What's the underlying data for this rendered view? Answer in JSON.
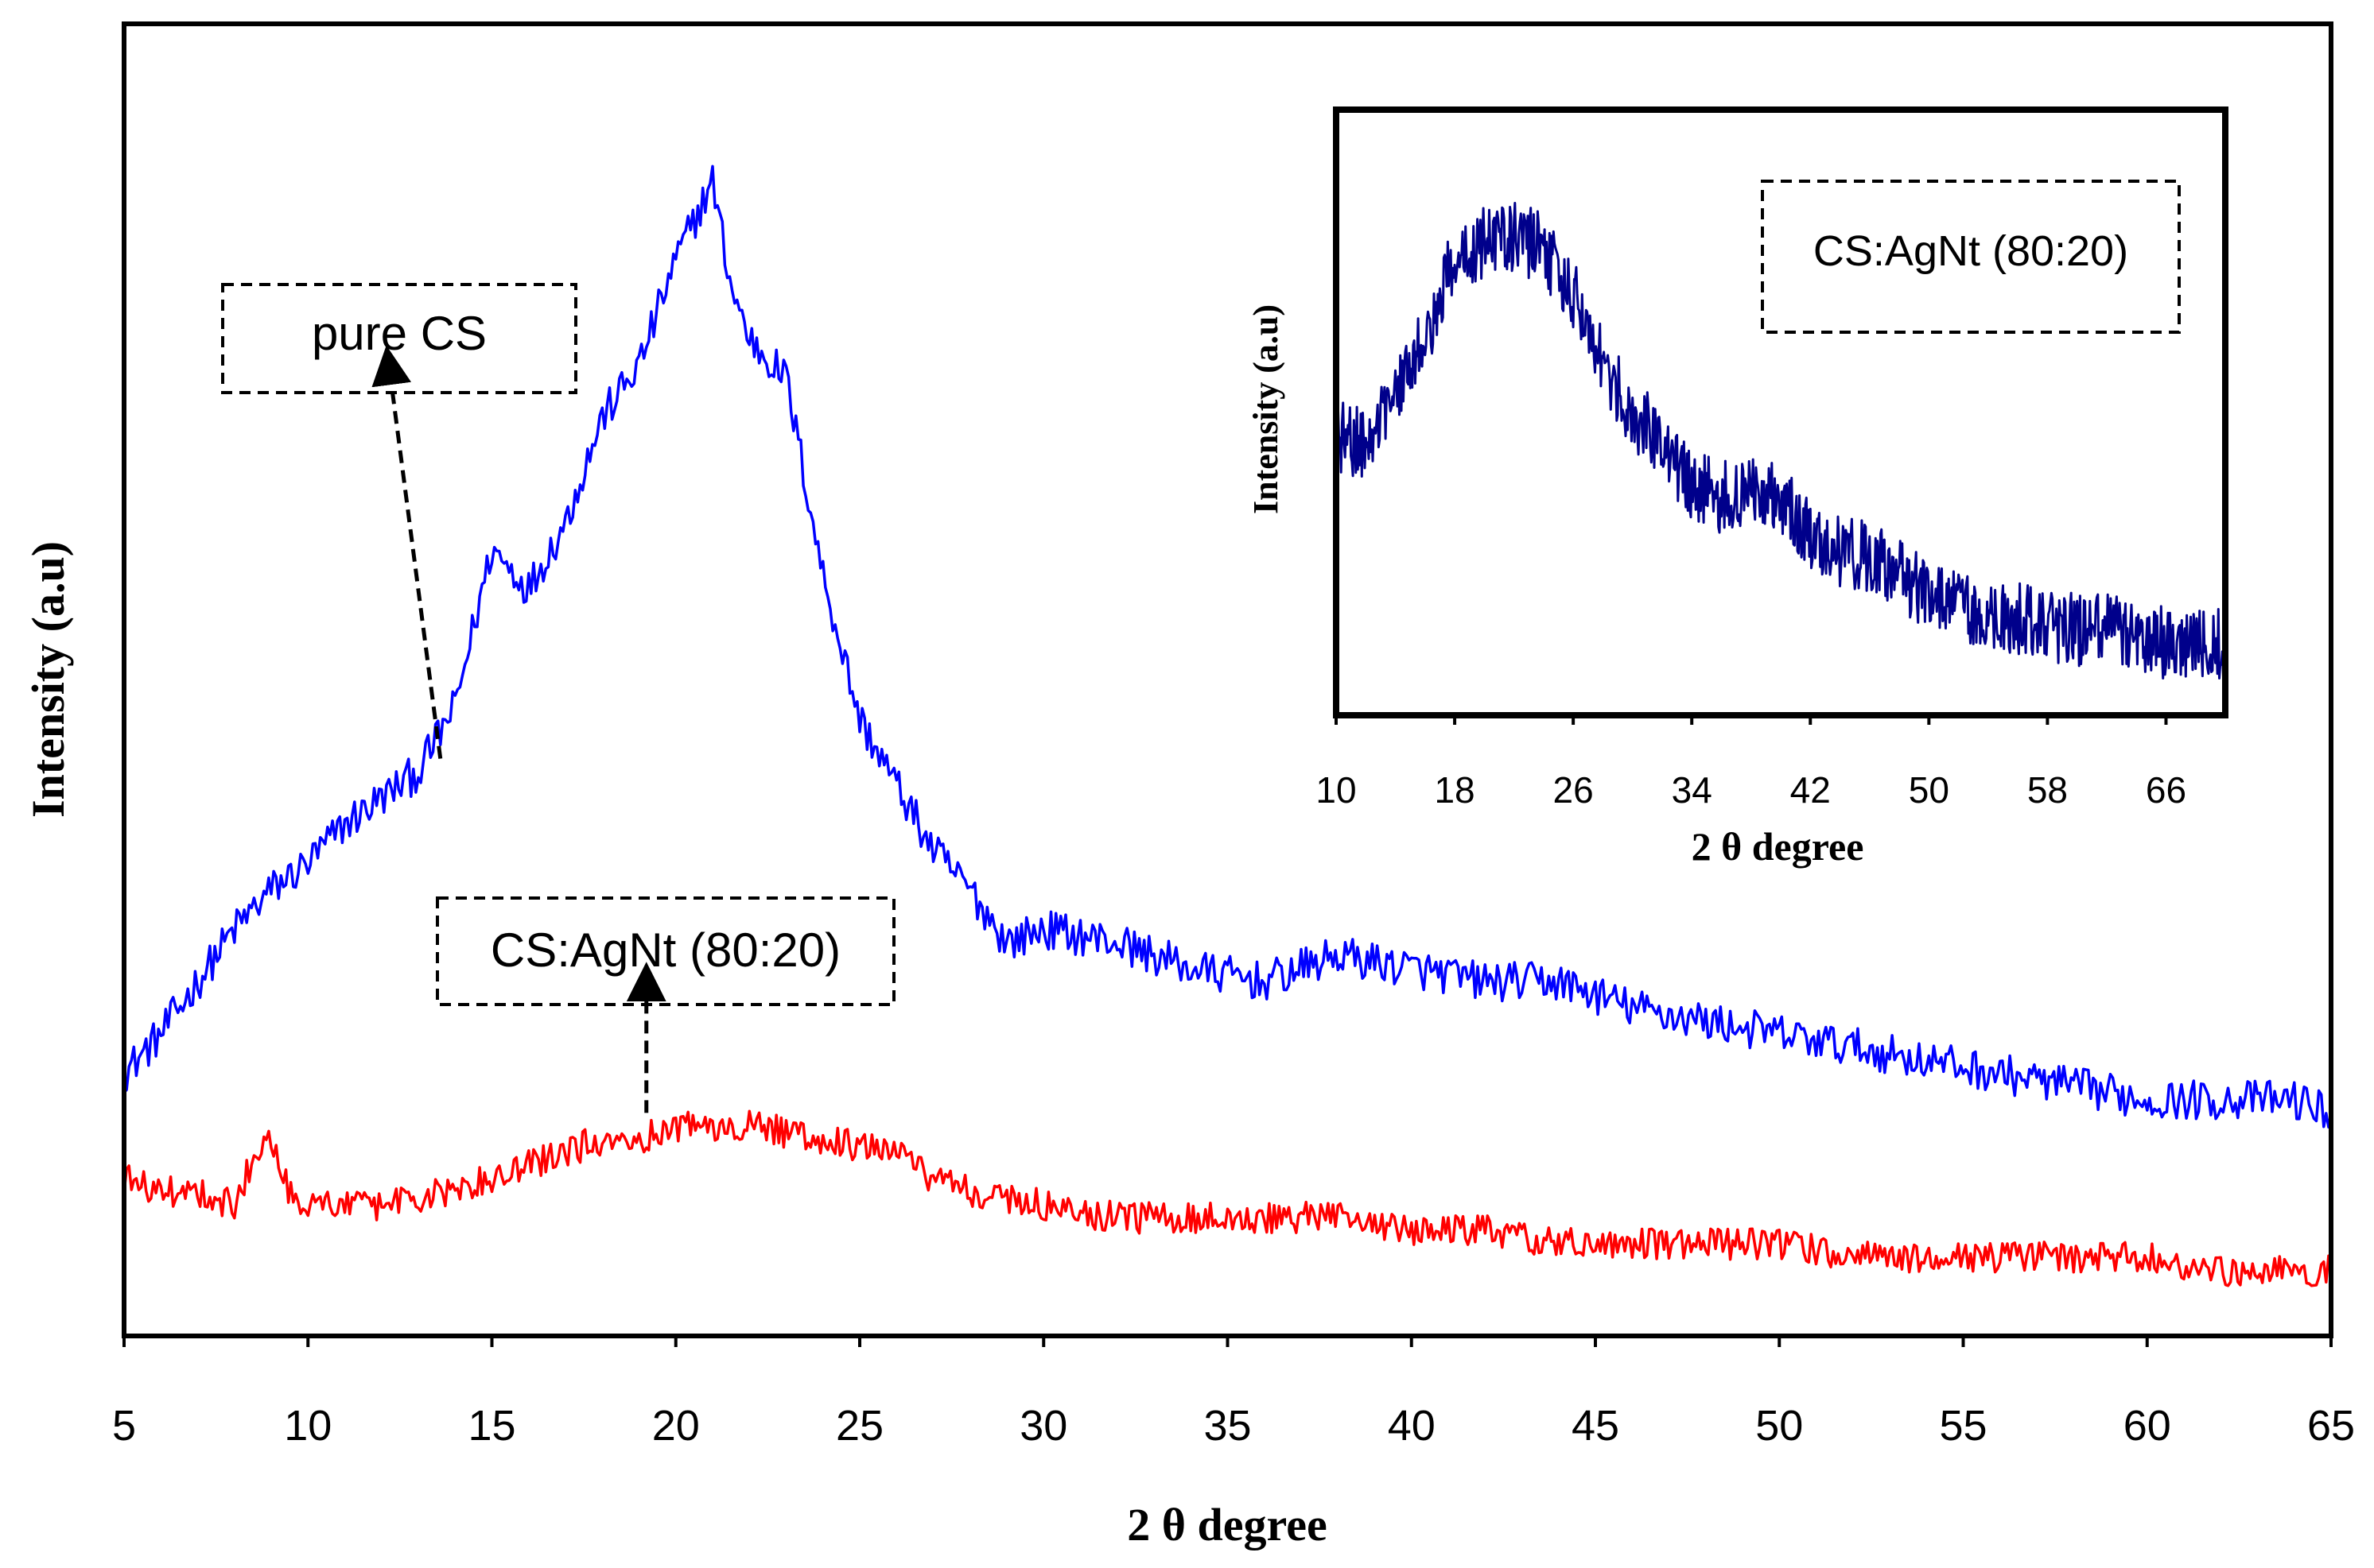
{
  "chart_data": [
    {
      "type": "line",
      "name": "main",
      "xlabel": "2 θ degree",
      "ylabel": "Intensity (a.u)",
      "xlim": [
        5,
        65
      ],
      "ylim": [
        0,
        1
      ],
      "x_ticks": [
        5,
        10,
        15,
        20,
        25,
        30,
        35,
        40,
        45,
        50,
        55,
        60,
        65
      ],
      "x_tick_labels": [
        "5",
        "10",
        "15",
        "20",
        "25",
        "30",
        "35",
        "40",
        "45",
        "50",
        "55",
        "60",
        "65"
      ],
      "y_ticks_shown": false,
      "series": [
        {
          "name": "pure CS",
          "color": "#0000ff",
          "x": [
            5,
            6,
            7,
            8,
            9,
            10,
            11,
            12,
            13,
            14,
            15,
            16,
            17,
            18,
            19,
            20,
            21,
            21.5,
            22,
            23,
            24,
            25,
            26,
            27,
            28,
            29,
            30,
            32,
            34,
            36,
            38,
            40,
            42,
            44,
            46,
            48,
            50,
            52,
            54,
            56,
            58,
            60,
            62,
            64,
            65
          ],
          "values": [
            0.2,
            0.23,
            0.27,
            0.31,
            0.34,
            0.36,
            0.39,
            0.41,
            0.43,
            0.48,
            0.6,
            0.57,
            0.62,
            0.7,
            0.74,
            0.82,
            0.88,
            0.8,
            0.76,
            0.73,
            0.58,
            0.47,
            0.42,
            0.37,
            0.34,
            0.3,
            0.31,
            0.3,
            0.28,
            0.27,
            0.29,
            0.28,
            0.27,
            0.27,
            0.25,
            0.24,
            0.23,
            0.22,
            0.21,
            0.2,
            0.19,
            0.18,
            0.18,
            0.18,
            0.17
          ],
          "noise": 0.015
        },
        {
          "name": "CS:AgNt (80:20)",
          "color": "#ff0000",
          "x": [
            5,
            6,
            7,
            8,
            8.9,
            9.5,
            10,
            12,
            14,
            16,
            18,
            19,
            20,
            22,
            24,
            26,
            27,
            28,
            30,
            32,
            34,
            36,
            38,
            40,
            42,
            44,
            46,
            48,
            50,
            52,
            54,
            56,
            58,
            60,
            62,
            64,
            65
          ],
          "values": [
            0.12,
            0.11,
            0.11,
            0.1,
            0.16,
            0.11,
            0.1,
            0.1,
            0.11,
            0.13,
            0.15,
            0.15,
            0.16,
            0.16,
            0.15,
            0.14,
            0.12,
            0.11,
            0.1,
            0.09,
            0.09,
            0.09,
            0.09,
            0.08,
            0.08,
            0.07,
            0.07,
            0.07,
            0.07,
            0.06,
            0.06,
            0.06,
            0.06,
            0.06,
            0.05,
            0.05,
            0.05
          ],
          "noise": 0.012
        }
      ],
      "annotations": [
        {
          "label": "pure CS",
          "arrow_from_x": 13.6,
          "arrow_from_y": 0.44,
          "arrow_to_x": 12.2,
          "arrow_to_y": 0.74
        },
        {
          "label": "CS:AgNt (80:20)",
          "arrow_from_x": 19.2,
          "arrow_from_y": 0.17,
          "arrow_to_x": 19.2,
          "arrow_to_y": 0.27
        }
      ]
    },
    {
      "type": "line",
      "name": "inset",
      "xlabel": "2 θ degree",
      "ylabel": "Intensity (a.u)",
      "xlim": [
        10,
        70
      ],
      "ylim": [
        0,
        1
      ],
      "x_ticks": [
        10,
        18,
        26,
        34,
        42,
        50,
        58,
        66
      ],
      "x_tick_labels": [
        "10",
        "18",
        "26",
        "34",
        "42",
        "50",
        "58",
        "66"
      ],
      "y_ticks_shown": false,
      "legend": "CS:AgNt (80:20)",
      "series": [
        {
          "name": "CS:AgNt (80:20)",
          "color": "#00008b",
          "x": [
            10,
            12,
            14,
            16,
            18,
            20,
            22,
            24,
            26,
            28,
            30,
            32,
            34,
            36,
            38,
            40,
            42,
            44,
            46,
            48,
            50,
            52,
            54,
            56,
            58,
            60,
            62,
            64,
            66,
            68,
            70
          ],
          "values": [
            0.46,
            0.45,
            0.52,
            0.62,
            0.76,
            0.78,
            0.79,
            0.77,
            0.7,
            0.58,
            0.5,
            0.45,
            0.38,
            0.36,
            0.38,
            0.36,
            0.3,
            0.27,
            0.26,
            0.23,
            0.2,
            0.18,
            0.17,
            0.16,
            0.15,
            0.14,
            0.14,
            0.13,
            0.12,
            0.12,
            0.12
          ],
          "noise": 0.06
        }
      ]
    }
  ]
}
